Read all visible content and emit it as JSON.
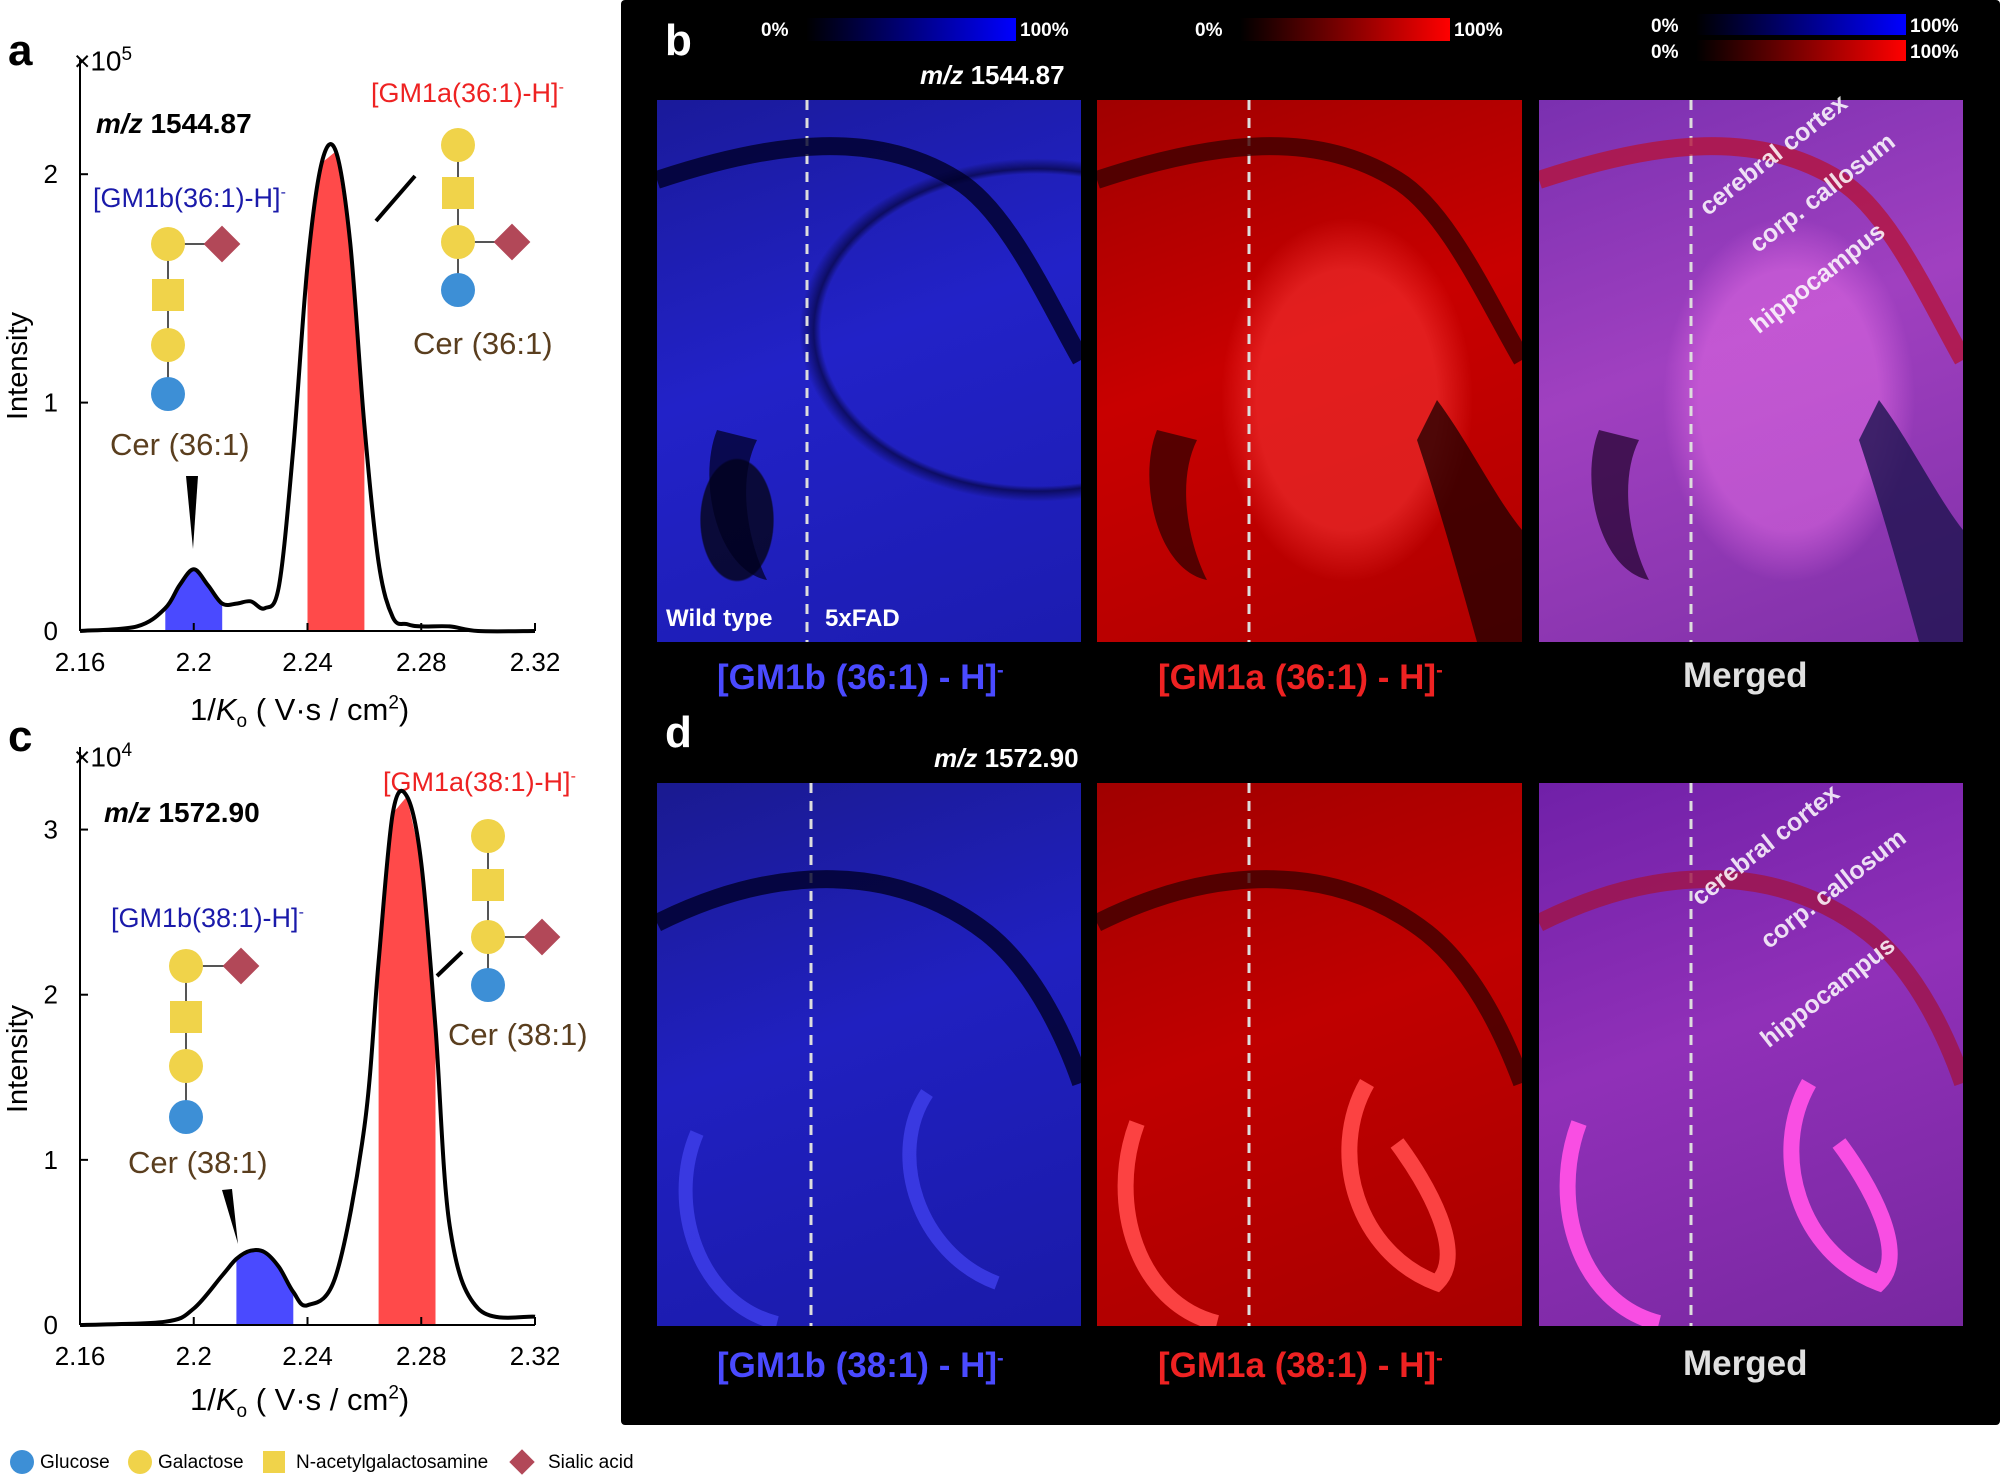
{
  "panels": {
    "a": {
      "letter": "a",
      "exponent_base": "×10",
      "exponent_power": "5",
      "mz_prefix": "m/z",
      "mz_value": "1544.87",
      "ion_b_label": "[GM1b(36:1)-H]",
      "ion_a_label": "[GM1a(36:1)-H]",
      "charge": "-",
      "cer_b": "Cer (36:1)",
      "cer_a": "Cer (36:1)",
      "ylabel": "Intensity",
      "xlabel_prefix": "1/",
      "xlabel_k": "K",
      "xlabel_sub": "o",
      "xlabel_units": " ( V·s / cm",
      "xlabel_units_sup": "2",
      "xlabel_units_end": ")"
    },
    "c": {
      "letter": "c",
      "exponent_base": "×10",
      "exponent_power": "4",
      "mz_prefix": "m/z",
      "mz_value": "1572.90",
      "ion_b_label": "[GM1b(38:1)-H]",
      "ion_a_label": "[GM1a(38:1)-H]",
      "charge": "-",
      "cer_b": "Cer (38:1)",
      "cer_a": "Cer (38:1)",
      "ylabel": "Intensity",
      "xlabel_prefix": "1/",
      "xlabel_k": "K",
      "xlabel_sub": "o",
      "xlabel_units": " ( V·s / cm",
      "xlabel_units_sup": "2",
      "xlabel_units_end": ")"
    },
    "b": {
      "letter": "b",
      "mz_prefix": "m/z",
      "mz_value": "1544.87",
      "wild_type": "Wild type",
      "fad": "5xFAD",
      "ion_blue": "[GM1b (36:1) - H]",
      "ion_red": "[GM1a (36:1) - H]",
      "charge": "-",
      "merged": "Merged",
      "regions": [
        "cerebral cortex",
        "corp. callosum",
        "hippocampus"
      ]
    },
    "d": {
      "letter": "d",
      "mz_prefix": "m/z",
      "mz_value": "1572.90",
      "ion_blue": "[GM1b (38:1) - H]",
      "ion_red": "[GM1a (38:1) - H]",
      "charge": "-",
      "merged": "Merged",
      "regions": [
        "cerebral cortex",
        "corp. callosum",
        "hippocampus"
      ]
    }
  },
  "scale": {
    "min": "0%",
    "max": "100%"
  },
  "legend": {
    "glucose": "Glucose",
    "galactose": "Galactose",
    "galnac": "N-acetylgalactosamine",
    "sialic": "Sialic acid"
  },
  "colors": {
    "blue_peak": "#4a4aff",
    "red_peak": "#ff4a4a",
    "galactose": "#f0d34a",
    "glucose": "#3d8fd6",
    "sialic": "#b24858",
    "ion_blue_text": "#1a1aaa",
    "ion_red_text": "#ee2222",
    "cer_text": "#5a3e1e"
  },
  "chart_data": [
    {
      "type": "line",
      "title": "m/z 1544.87",
      "xlabel": "1/Ko ( V·s / cm2)",
      "ylabel": "Intensity",
      "y_multiplier": "×10^5",
      "xlim": [
        2.16,
        2.32
      ],
      "ylim": [
        0,
        2.5
      ],
      "xticks": [
        "2.16",
        "2.2",
        "2.24",
        "2.28",
        "2.32"
      ],
      "yticks": [
        "0",
        "1",
        "2"
      ],
      "series": [
        {
          "name": "mobilogram",
          "x": [
            2.16,
            2.18,
            2.19,
            2.195,
            2.2,
            2.205,
            2.21,
            2.215,
            2.22,
            2.225,
            2.23,
            2.235,
            2.24,
            2.245,
            2.25,
            2.255,
            2.26,
            2.265,
            2.27,
            2.275,
            2.28,
            2.29,
            2.3,
            2.32
          ],
          "y": [
            0.0,
            0.02,
            0.1,
            0.2,
            0.27,
            0.2,
            0.12,
            0.12,
            0.13,
            0.1,
            0.2,
            0.8,
            1.6,
            2.05,
            2.1,
            1.7,
            0.9,
            0.3,
            0.06,
            0.03,
            0.02,
            0.02,
            0.0,
            0.0
          ]
        }
      ],
      "shaded_peaks": [
        {
          "name": "[GM1b(36:1)-H]-",
          "range": [
            2.19,
            2.21
          ],
          "color": "#4a4aff"
        },
        {
          "name": "[GM1a(36:1)-H]-",
          "range": [
            2.24,
            2.26
          ],
          "color": "#ff4a4a"
        }
      ]
    },
    {
      "type": "line",
      "title": "m/z 1572.90",
      "xlabel": "1/Ko ( V·s / cm2)",
      "ylabel": "Intensity",
      "y_multiplier": "×10^4",
      "xlim": [
        2.16,
        2.32
      ],
      "ylim": [
        0,
        3.5
      ],
      "xticks": [
        "2.16",
        "2.2",
        "2.24",
        "2.28",
        "2.32"
      ],
      "yticks": [
        "0",
        "1",
        "2",
        "3"
      ],
      "series": [
        {
          "name": "mobilogram",
          "x": [
            2.16,
            2.19,
            2.2,
            2.21,
            2.215,
            2.22,
            2.225,
            2.23,
            2.235,
            2.24,
            2.25,
            2.26,
            2.265,
            2.27,
            2.275,
            2.28,
            2.285,
            2.29,
            2.3,
            2.32
          ],
          "y": [
            0.0,
            0.02,
            0.1,
            0.3,
            0.4,
            0.45,
            0.44,
            0.35,
            0.2,
            0.12,
            0.3,
            1.2,
            2.2,
            3.1,
            3.2,
            2.8,
            1.8,
            0.6,
            0.1,
            0.05
          ]
        }
      ],
      "shaded_peaks": [
        {
          "name": "[GM1b(38:1)-H]-",
          "range": [
            2.215,
            2.235
          ],
          "color": "#4a4aff"
        },
        {
          "name": "[GM1a(38:1)-H]-",
          "range": [
            2.265,
            2.285
          ],
          "color": "#ff4a4a"
        }
      ]
    }
  ]
}
